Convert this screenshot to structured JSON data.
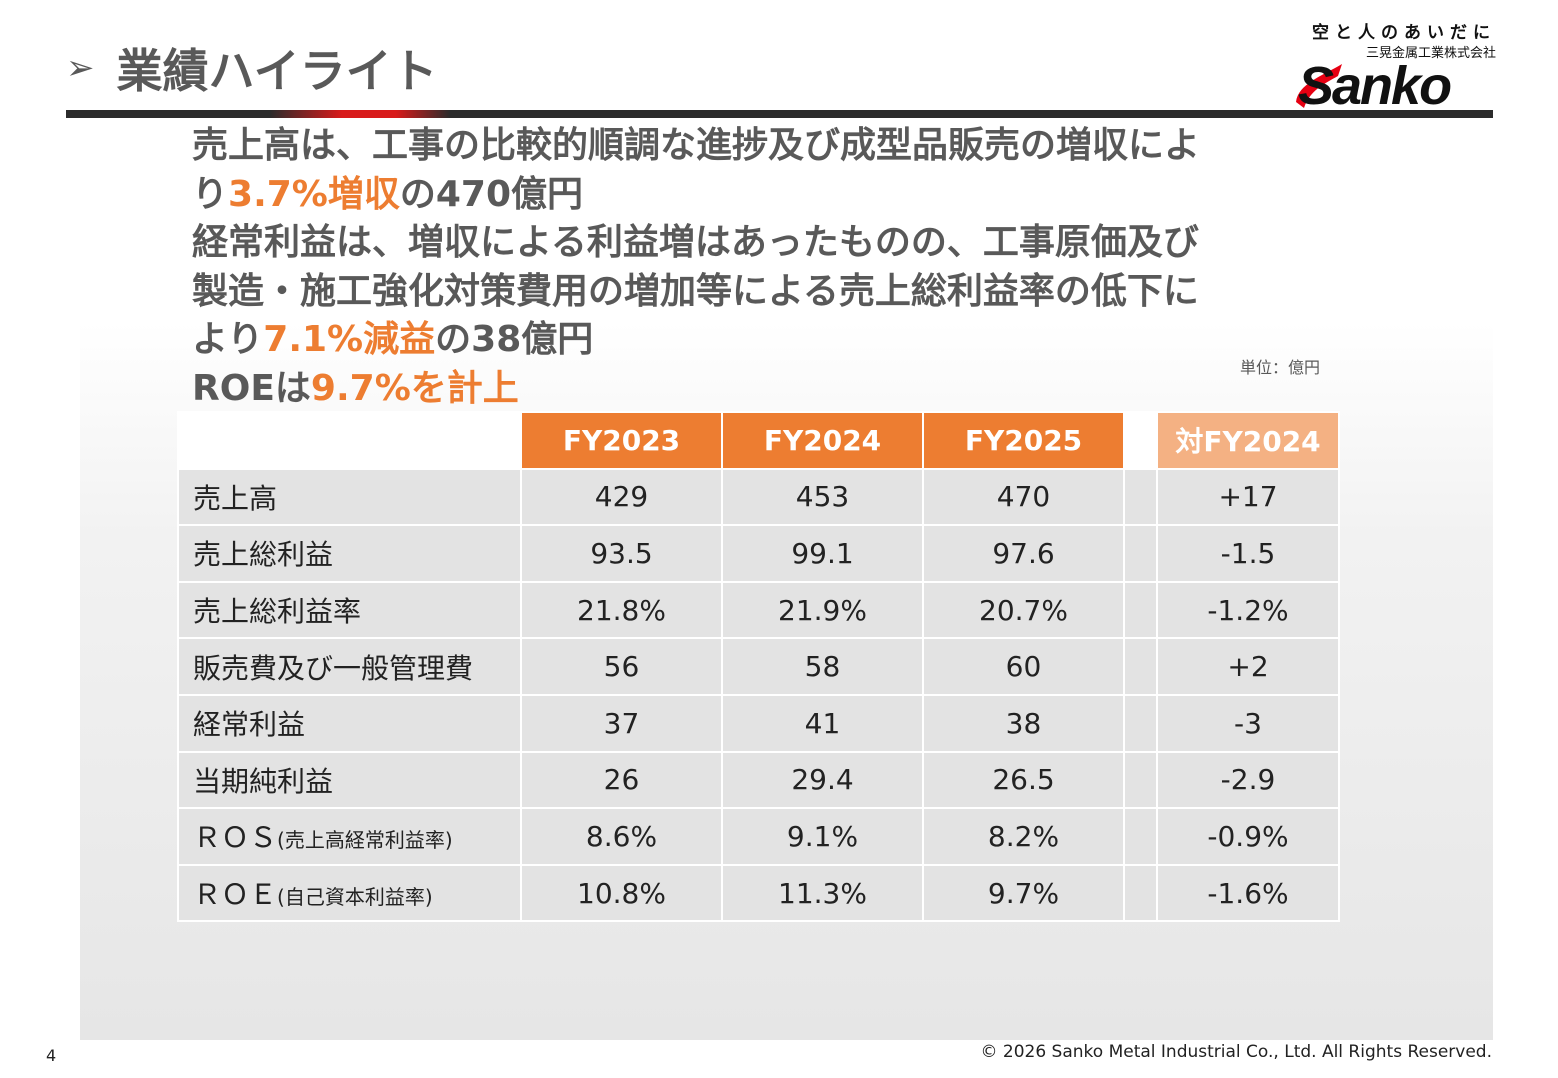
{
  "header": {
    "arrow": "➢",
    "title": "業績ハイライト"
  },
  "logo": {
    "tagline": "空と人のあいだに",
    "company": "三晃金属工業株式会社",
    "brand": "Sanko"
  },
  "summary": {
    "l1": "売上高は、工事の比較的順調な進捗及び成型品販売の増収によ",
    "l2a": "り",
    "l2b": "3.7%増収",
    "l2c": "の470億円",
    "l3": "経常利益は、増収による利益増はあったものの、工事原価及び",
    "l4": "製造・施工強化対策費用の増加等による売上総利益率の低下に",
    "l5a": "より",
    "l5b": "7.1%減益",
    "l5c": "の38億円",
    "l6a": "ROEは",
    "l6b": "9.7%を計上"
  },
  "unit_label": "単位：億円",
  "table": {
    "headers": [
      "FY2023",
      "FY2024",
      "FY2025",
      "対FY2024"
    ],
    "rows": [
      {
        "label": "売上高",
        "paren": "",
        "v": [
          "429",
          "453",
          "470",
          "+17"
        ]
      },
      {
        "label": "売上総利益",
        "paren": "",
        "v": [
          "93.5",
          "99.1",
          "97.6",
          "-1.5"
        ]
      },
      {
        "label": "売上総利益率",
        "paren": "",
        "v": [
          "21.8%",
          "21.9%",
          "20.7%",
          "-1.2%"
        ]
      },
      {
        "label": "販売費及び一般管理費",
        "paren": "",
        "v": [
          "56",
          "58",
          "60",
          "+2"
        ]
      },
      {
        "label": "経常利益",
        "paren": "",
        "v": [
          "37",
          "41",
          "38",
          "-3"
        ]
      },
      {
        "label": "当期純利益",
        "paren": "",
        "v": [
          "26",
          "29.4",
          "26.5",
          "-2.9"
        ]
      },
      {
        "label": "ＲＯＳ",
        "paren": "(売上高経常利益率)",
        "v": [
          "8.6%",
          "9.1%",
          "8.2%",
          "-0.9%"
        ]
      },
      {
        "label": "ＲＯＥ",
        "paren": "(自己資本利益率)",
        "v": [
          "10.8%",
          "11.3%",
          "9.7%",
          "-1.6%"
        ]
      }
    ]
  },
  "footer": {
    "page": "4",
    "copyright": "© 2026 Sanko Metal Industrial Co., Ltd. All Rights Reserved."
  },
  "colors": {
    "accent": "#ed7d31",
    "accent_light": "#f4b183",
    "cell": "#e3e3e3",
    "brand_red": "#e60012"
  }
}
